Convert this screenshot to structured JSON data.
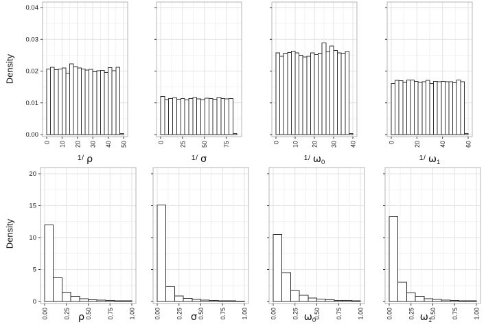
{
  "rows": [
    {
      "ylabel": "Density"
    },
    {
      "ylabel": "Density"
    }
  ],
  "colors": {
    "panel_border": "#b3b3b3",
    "grid_major": "#e2e2e2",
    "grid_minor": "#f2f2f2",
    "bar_fill": "#ffffff",
    "bar_stroke": "#2f2f2f",
    "tick_mark": "#333333",
    "text": "#1a1a1a"
  },
  "chart_data": [
    {
      "id": "inv_rho",
      "type": "bar",
      "row": 0,
      "col": 0,
      "show_y_labels": true,
      "xlabel": {
        "prefix": "1/ ",
        "symbol": "ρ",
        "sub": ""
      },
      "xlim": [
        0,
        50
      ],
      "xticks": [
        0,
        10,
        20,
        30,
        40,
        50
      ],
      "xtick_labels": [
        "0",
        "10",
        "20",
        "30",
        "40",
        "50"
      ],
      "ylim": [
        0,
        0.04
      ],
      "yticks": [
        0,
        0.01,
        0.02,
        0.03,
        0.04
      ],
      "ytick_labels": [
        "0.00",
        "0.01",
        "0.02",
        "0.03",
        "0.04"
      ],
      "bin_start": 0,
      "bin_width": 2.5,
      "values": [
        0.0206,
        0.0212,
        0.0204,
        0.0206,
        0.021,
        0.0193,
        0.0223,
        0.0214,
        0.021,
        0.0207,
        0.0203,
        0.0205,
        0.0198,
        0.0201,
        0.0202,
        0.0196,
        0.0211,
        0.0201,
        0.0212,
        0.0003
      ]
    },
    {
      "id": "inv_sigma",
      "type": "bar",
      "row": 0,
      "col": 1,
      "show_y_labels": false,
      "xlabel": {
        "prefix": "1/ ",
        "symbol": "σ",
        "sub": ""
      },
      "xlim": [
        0,
        88
      ],
      "xticks": [
        0,
        25,
        50,
        75
      ],
      "xtick_labels": [
        "0",
        "25",
        "50",
        "75"
      ],
      "ylim": [
        0,
        0.04
      ],
      "yticks": [
        0,
        0.01,
        0.02,
        0.03,
        0.04
      ],
      "ytick_labels": [
        "0.00",
        "0.01",
        "0.02",
        "0.03",
        "0.04"
      ],
      "bin_start": 0,
      "bin_width": 4.6,
      "values": [
        0.012,
        0.011,
        0.0113,
        0.0116,
        0.0111,
        0.0113,
        0.0109,
        0.0113,
        0.0117,
        0.0112,
        0.011,
        0.0115,
        0.0114,
        0.0111,
        0.0117,
        0.0113,
        0.0112,
        0.0113,
        0.0003
      ]
    },
    {
      "id": "inv_omega0",
      "type": "bar",
      "row": 0,
      "col": 2,
      "show_y_labels": false,
      "xlabel": {
        "prefix": "1/ ",
        "symbol": "ω",
        "sub": "0"
      },
      "xlim": [
        0,
        40
      ],
      "xticks": [
        0,
        10,
        20,
        30,
        40
      ],
      "xtick_labels": [
        "0",
        "10",
        "20",
        "30",
        "40"
      ],
      "ylim": [
        0,
        0.04
      ],
      "yticks": [
        0,
        0.01,
        0.02,
        0.03,
        0.04
      ],
      "ytick_labels": [
        "0.00",
        "0.01",
        "0.02",
        "0.03",
        "0.04"
      ],
      "bin_start": 0,
      "bin_width": 2,
      "values": [
        0.0257,
        0.0247,
        0.0256,
        0.0258,
        0.0263,
        0.0257,
        0.025,
        0.0244,
        0.0247,
        0.0257,
        0.0252,
        0.0256,
        0.0289,
        0.0262,
        0.0279,
        0.0265,
        0.0257,
        0.0256,
        0.0262,
        0.0003
      ]
    },
    {
      "id": "inv_omega1",
      "type": "bar",
      "row": 0,
      "col": 3,
      "show_y_labels": false,
      "xlabel": {
        "prefix": "1/ ",
        "symbol": "ω",
        "sub": "1"
      },
      "xlim": [
        0,
        60
      ],
      "xticks": [
        0,
        20,
        40,
        60
      ],
      "xtick_labels": [
        "0",
        "20",
        "40",
        "60"
      ],
      "ylim": [
        0,
        0.04
      ],
      "yticks": [
        0,
        0.01,
        0.02,
        0.03,
        0.04
      ],
      "ytick_labels": [
        "0.00",
        "0.01",
        "0.02",
        "0.03",
        "0.04"
      ],
      "bin_start": 0,
      "bin_width": 3,
      "values": [
        0.0161,
        0.0171,
        0.017,
        0.0164,
        0.0172,
        0.0172,
        0.0168,
        0.0164,
        0.0166,
        0.0171,
        0.0161,
        0.0168,
        0.0166,
        0.0168,
        0.0167,
        0.0166,
        0.0163,
        0.0172,
        0.0167,
        0.0003
      ]
    },
    {
      "id": "rho",
      "type": "bar",
      "row": 1,
      "col": 0,
      "show_y_labels": true,
      "xlabel": {
        "symbol": "ρ",
        "sub": ""
      },
      "xlim": [
        0,
        1
      ],
      "xticks": [
        0,
        0.25,
        0.5,
        0.75,
        1
      ],
      "xtick_labels": [
        "0.00",
        "0.25",
        "0.50",
        "0.75",
        "1.00"
      ],
      "ylim": [
        0,
        20
      ],
      "yticks": [
        0,
        5,
        10,
        15,
        20
      ],
      "ytick_labels": [
        "0",
        "5",
        "10",
        "15",
        "20"
      ],
      "bin_start": 0,
      "bin_width": 0.1,
      "values": [
        12.0,
        3.7,
        1.45,
        0.8,
        0.45,
        0.28,
        0.2,
        0.15,
        0.12,
        0.1
      ]
    },
    {
      "id": "sigma",
      "type": "bar",
      "row": 1,
      "col": 1,
      "show_y_labels": false,
      "xlabel": {
        "symbol": "σ",
        "sub": ""
      },
      "xlim": [
        0,
        1
      ],
      "xticks": [
        0,
        0.25,
        0.5,
        0.75,
        1
      ],
      "xtick_labels": [
        "0.00",
        "0.25",
        "0.50",
        "0.75",
        "1.00"
      ],
      "ylim": [
        0,
        20
      ],
      "yticks": [
        0,
        5,
        10,
        15,
        20
      ],
      "ytick_labels": [
        "0",
        "5",
        "10",
        "15",
        "20"
      ],
      "bin_start": 0,
      "bin_width": 0.1,
      "values": [
        15.1,
        2.3,
        0.85,
        0.5,
        0.3,
        0.2,
        0.15,
        0.12,
        0.1,
        0.08
      ]
    },
    {
      "id": "omega0",
      "type": "bar",
      "row": 1,
      "col": 2,
      "show_y_labels": false,
      "xlabel": {
        "symbol": "ω",
        "sub": "0"
      },
      "xlim": [
        0,
        1
      ],
      "xticks": [
        0,
        0.25,
        0.5,
        0.75,
        1
      ],
      "xtick_labels": [
        "0.00",
        "0.25",
        "0.50",
        "0.75",
        "1.00"
      ],
      "ylim": [
        0,
        20
      ],
      "yticks": [
        0,
        5,
        10,
        15,
        20
      ],
      "ytick_labels": [
        "0",
        "5",
        "10",
        "15",
        "20"
      ],
      "bin_start": 0,
      "bin_width": 0.1,
      "values": [
        10.5,
        4.5,
        1.7,
        0.95,
        0.55,
        0.35,
        0.25,
        0.18,
        0.14,
        0.1
      ]
    },
    {
      "id": "omega1",
      "type": "bar",
      "row": 1,
      "col": 3,
      "show_y_labels": false,
      "xlabel": {
        "symbol": "ω",
        "sub": "1"
      },
      "xlim": [
        0,
        1
      ],
      "xticks": [
        0,
        0.25,
        0.5,
        0.75,
        1
      ],
      "xtick_labels": [
        "0.00",
        "0.25",
        "0.50",
        "0.75",
        "1.00"
      ],
      "ylim": [
        0,
        20
      ],
      "yticks": [
        0,
        5,
        10,
        15,
        20
      ],
      "ytick_labels": [
        "0",
        "5",
        "10",
        "15",
        "20"
      ],
      "bin_start": 0,
      "bin_width": 0.1,
      "values": [
        13.3,
        3.0,
        1.35,
        0.8,
        0.45,
        0.3,
        0.2,
        0.15,
        0.12,
        0.1
      ]
    }
  ]
}
